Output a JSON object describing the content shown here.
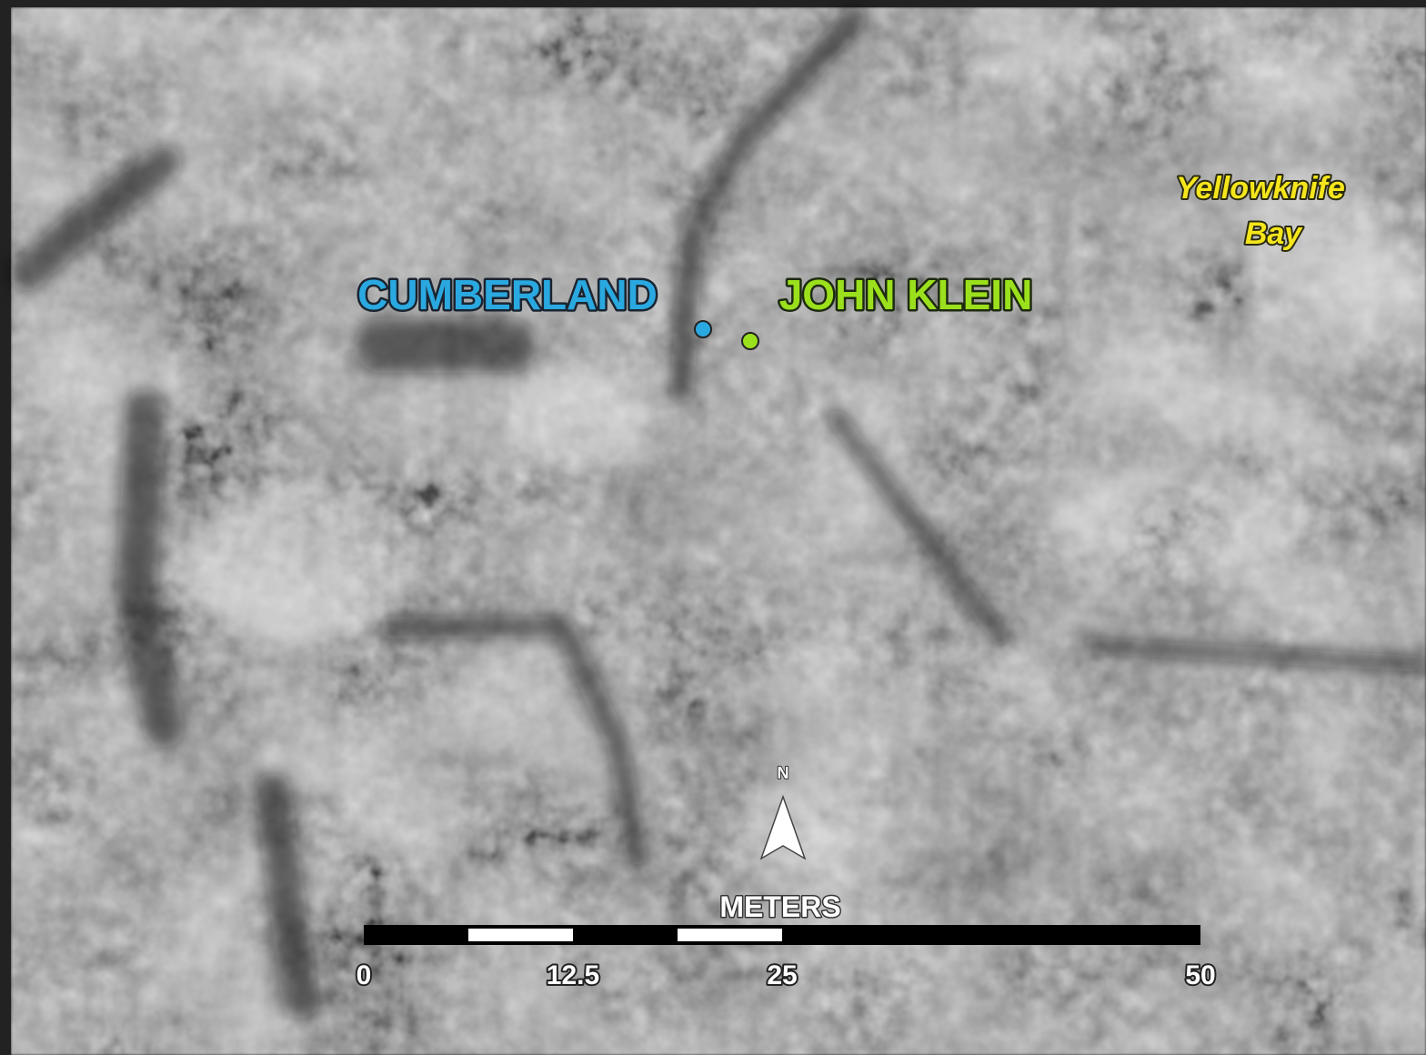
{
  "map": {
    "labels": {
      "cumberland": "CUMBERLAND",
      "john_klein": "JOHN KLEIN",
      "yellowknife_bay": [
        "Yellowknife",
        "Bay"
      ]
    },
    "north_arrow": "N",
    "scale_bar": {
      "unit": "METERS",
      "ticks": [
        0,
        12.5,
        25,
        50
      ]
    }
  }
}
